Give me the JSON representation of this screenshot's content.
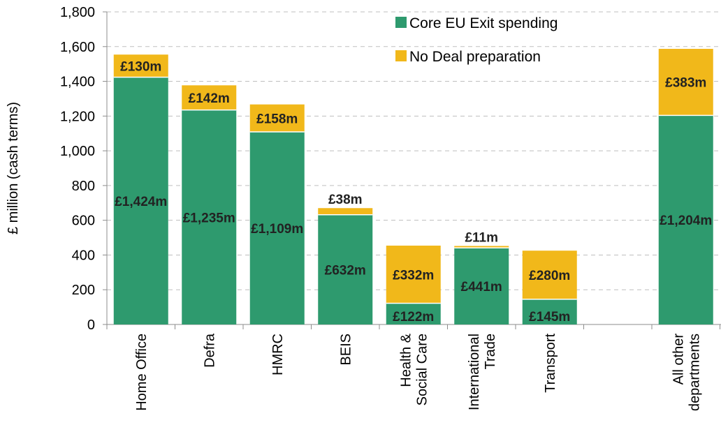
{
  "chart_data": {
    "type": "bar",
    "stacked": true,
    "ylabel": "£ million (cash terms)",
    "xlabel": "",
    "ylim": [
      0,
      1800
    ],
    "yticks": [
      0,
      200,
      400,
      600,
      800,
      1000,
      1200,
      1400,
      1600,
      1800
    ],
    "ytick_labels": [
      "0",
      "200",
      "400",
      "600",
      "800",
      "1,000",
      "1,200",
      "1,400",
      "1,600",
      "1,800"
    ],
    "grid": true,
    "legend_position": "top-right",
    "categories": [
      [
        "Home Office"
      ],
      [
        "Defra"
      ],
      [
        "HMRC"
      ],
      [
        "BEIS"
      ],
      [
        "Health &",
        "Social Care"
      ],
      [
        "International",
        "Trade"
      ],
      [
        "Transport"
      ],
      [],
      [
        "All other",
        "departments"
      ]
    ],
    "series": [
      {
        "name": "Core EU Exit spending",
        "color": "#2e9a6e",
        "values": [
          1424,
          1235,
          1109,
          632,
          122,
          441,
          145,
          null,
          1204
        ],
        "labels": [
          "£1,424m",
          "£1,235m",
          "£1,109m",
          "£632m",
          "£122m",
          "£441m",
          "£145m",
          null,
          "£1,204m"
        ]
      },
      {
        "name": "No Deal preparation",
        "color": "#f1b81a",
        "values": [
          130,
          142,
          158,
          38,
          332,
          11,
          280,
          null,
          383
        ],
        "labels": [
          "£130m",
          "£142m",
          "£158m",
          "£38m",
          "£332m",
          "£11m",
          "£280m",
          null,
          "£383m"
        ]
      }
    ]
  }
}
